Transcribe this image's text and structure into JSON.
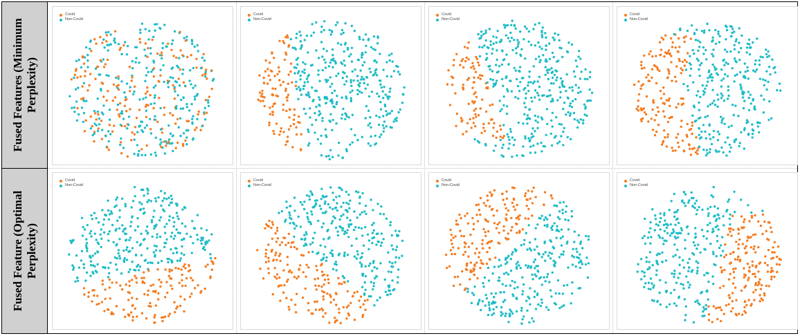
{
  "rows": [
    {
      "label_line1": "Fused Features  (Minimum",
      "label_line2": "Perplexity)"
    },
    {
      "label_line1": "Fused Feature (Optimal",
      "label_line2": "Perplexity)"
    }
  ],
  "colors": {
    "covid": "#f47c20",
    "non_covid": "#1fbcc6"
  },
  "chart_data": [
    {
      "type": "scatter",
      "row": 0,
      "col": 0,
      "legend": [
        "Covid",
        "Non-Covid"
      ],
      "pattern": "mixed",
      "grid": false,
      "legend_position": "top-left"
    },
    {
      "type": "scatter",
      "row": 0,
      "col": 1,
      "legend": [
        "Covid",
        "Non-Covid"
      ],
      "pattern": "left",
      "grid": false,
      "legend_position": "top-left"
    },
    {
      "type": "scatter",
      "row": 0,
      "col": 2,
      "legend": [
        "Covid",
        "Non-Covid"
      ],
      "pattern": "upper-left-arc",
      "grid": false,
      "legend_position": "top-left"
    },
    {
      "type": "scatter",
      "row": 0,
      "col": 3,
      "legend": [
        "Covid",
        "Non-Covid"
      ],
      "pattern": "left-arc",
      "grid": false,
      "legend_position": "top-left"
    },
    {
      "type": "scatter",
      "row": 1,
      "col": 0,
      "legend": [
        "Covid",
        "Non-Covid"
      ],
      "pattern": "bottom",
      "grid": false,
      "legend_position": "top-left"
    },
    {
      "type": "scatter",
      "row": 1,
      "col": 1,
      "legend": [
        "Covid",
        "Non-Covid"
      ],
      "pattern": "lower-left",
      "grid": false,
      "legend_position": "top-left"
    },
    {
      "type": "scatter",
      "row": 1,
      "col": 2,
      "legend": [
        "Covid",
        "Non-Covid"
      ],
      "pattern": "upper-left",
      "grid": false,
      "legend_position": "top-left"
    },
    {
      "type": "scatter",
      "row": 1,
      "col": 3,
      "legend": [
        "Covid",
        "Non-Covid"
      ],
      "pattern": "right",
      "grid": false,
      "legend_position": "top-left"
    }
  ]
}
